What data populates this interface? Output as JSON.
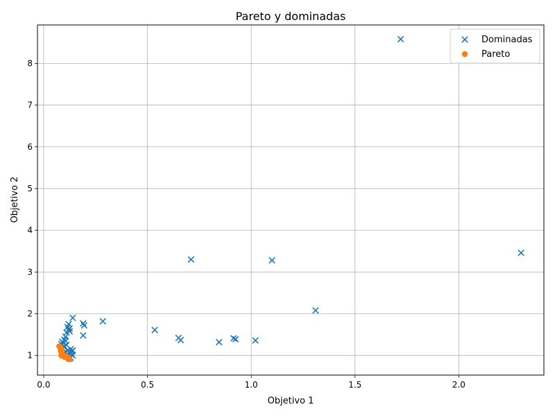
{
  "chart_data": {
    "type": "scatter",
    "title": "Pareto y dominadas",
    "xlabel": "Objetivo 1",
    "ylabel": "Objetivo 2",
    "xlim": [
      -0.03,
      2.41
    ],
    "ylim": [
      0.53,
      8.92
    ],
    "xticks": [
      0.0,
      0.5,
      1.0,
      1.5,
      2.0
    ],
    "xtick_labels": [
      "0.0",
      "0.5",
      "1.0",
      "1.5",
      "2.0"
    ],
    "yticks": [
      1,
      2,
      3,
      4,
      5,
      6,
      7,
      8
    ],
    "ytick_labels": [
      "1",
      "2",
      "3",
      "4",
      "5",
      "6",
      "7",
      "8"
    ],
    "grid": true,
    "legend_position": "top-right",
    "series": [
      {
        "name": "Dominadas",
        "marker": "x",
        "color": "#1f77b4",
        "points": [
          [
            1.72,
            8.58
          ],
          [
            2.3,
            3.46
          ],
          [
            0.71,
            3.3
          ],
          [
            1.1,
            3.28
          ],
          [
            1.31,
            2.08
          ],
          [
            0.14,
            1.9
          ],
          [
            0.285,
            1.82
          ],
          [
            0.19,
            1.77
          ],
          [
            0.195,
            1.72
          ],
          [
            0.19,
            1.48
          ],
          [
            0.535,
            1.61
          ],
          [
            0.65,
            1.42
          ],
          [
            0.66,
            1.37
          ],
          [
            0.845,
            1.32
          ],
          [
            0.915,
            1.41
          ],
          [
            0.925,
            1.39
          ],
          [
            1.02,
            1.36
          ],
          [
            0.12,
            1.75
          ],
          [
            0.115,
            1.68
          ],
          [
            0.12,
            1.62
          ],
          [
            0.125,
            1.58
          ],
          [
            0.11,
            1.55
          ],
          [
            0.125,
            1.65
          ],
          [
            0.105,
            1.45
          ],
          [
            0.1,
            1.38
          ],
          [
            0.09,
            1.33
          ],
          [
            0.095,
            1.3
          ],
          [
            0.085,
            1.28
          ],
          [
            0.105,
            1.35
          ],
          [
            0.11,
            1.25
          ],
          [
            0.1,
            1.22
          ],
          [
            0.13,
            1.15
          ],
          [
            0.135,
            1.1
          ],
          [
            0.14,
            1.12
          ],
          [
            0.13,
            1.05
          ],
          [
            0.135,
            1.02
          ],
          [
            0.125,
            1.08
          ],
          [
            0.12,
            1.0
          ],
          [
            0.14,
            1.0
          ],
          [
            0.13,
            0.95
          ],
          [
            0.115,
            1.12
          ],
          [
            0.09,
            1.18
          ],
          [
            0.095,
            1.05
          ],
          [
            0.105,
            1.0
          ],
          [
            0.11,
            0.97
          ],
          [
            0.125,
            0.92
          ]
        ]
      },
      {
        "name": "Pareto",
        "marker": "o",
        "color": "#ff7f0e",
        "points": [
          [
            0.075,
            1.22
          ],
          [
            0.08,
            1.2
          ],
          [
            0.085,
            1.15
          ],
          [
            0.082,
            1.12
          ],
          [
            0.085,
            1.08
          ],
          [
            0.088,
            1.05
          ],
          [
            0.09,
            1.02
          ],
          [
            0.095,
            1.0
          ],
          [
            0.1,
            0.99
          ],
          [
            0.105,
            0.98
          ],
          [
            0.11,
            0.97
          ],
          [
            0.112,
            0.95
          ],
          [
            0.115,
            0.93
          ],
          [
            0.12,
            0.92
          ],
          [
            0.125,
            0.91
          ],
          [
            0.085,
            1.0
          ],
          [
            0.092,
            0.99
          ],
          [
            0.098,
            0.98
          ]
        ]
      }
    ]
  }
}
